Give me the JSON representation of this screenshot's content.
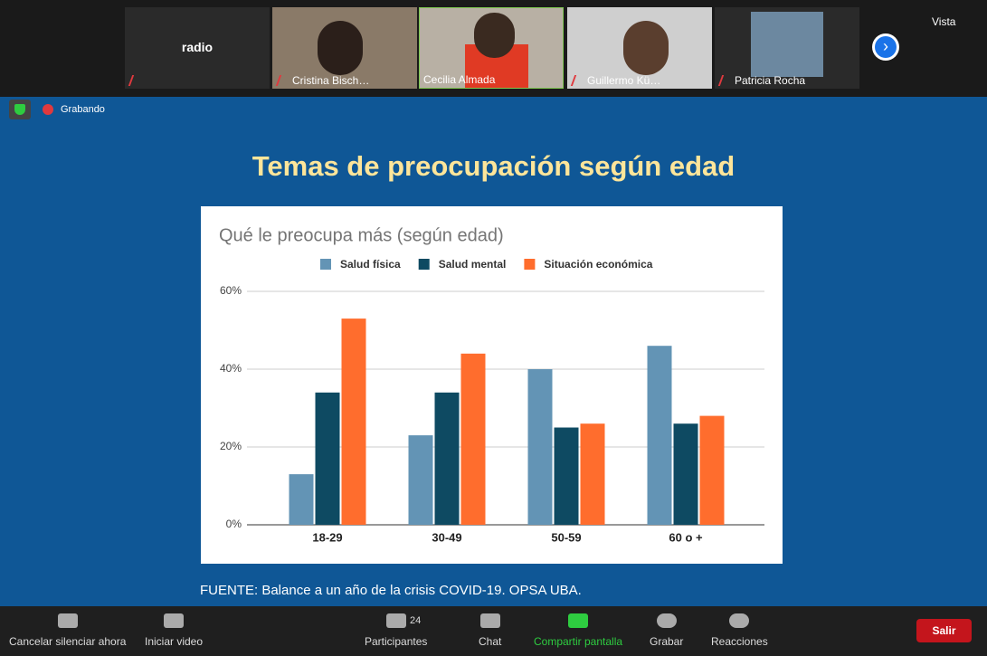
{
  "participants": [
    {
      "name": "radio"
    },
    {
      "name": "Cristina Bisch…"
    },
    {
      "name": "Cecilia Almada"
    },
    {
      "name": "Guillermo Kü…"
    },
    {
      "name": "Patricia Rocha"
    }
  ],
  "view_button": "Vista",
  "recording": "Grabando",
  "slide_title": "Temas de preocupación según edad",
  "chart_data": {
    "type": "bar",
    "title": "Qué le preocupa más (según edad)",
    "categories": [
      "18-29",
      "30-49",
      "50-59",
      "60 o +"
    ],
    "series": [
      {
        "name": "Salud física",
        "color": "#6394b5",
        "values": [
          13,
          23,
          40,
          46
        ]
      },
      {
        "name": "Salud mental",
        "color": "#0e4a62",
        "values": [
          34,
          34,
          25,
          26
        ]
      },
      {
        "name": "Situación económica",
        "color": "#ff6d2d",
        "values": [
          53,
          44,
          26,
          28
        ]
      }
    ],
    "ylim": [
      0,
      60
    ],
    "yticks": [
      {
        "value": 0,
        "label": "0%"
      },
      {
        "value": 20,
        "label": "20%"
      },
      {
        "value": 40,
        "label": "40%"
      },
      {
        "value": 60,
        "label": "60%"
      }
    ],
    "grid": true,
    "legend": "top"
  },
  "source": "FUENTE: Balance a un año de la crisis COVID-19. OPSA UBA.",
  "toolbar": {
    "mute": "Cancelar silenciar ahora",
    "video": "Iniciar video",
    "participants": "Participantes",
    "participant_count": 24,
    "chat": "Chat",
    "share": "Compartir pantalla",
    "record": "Grabar",
    "reactions": "Reacciones",
    "leave": "Salir"
  }
}
